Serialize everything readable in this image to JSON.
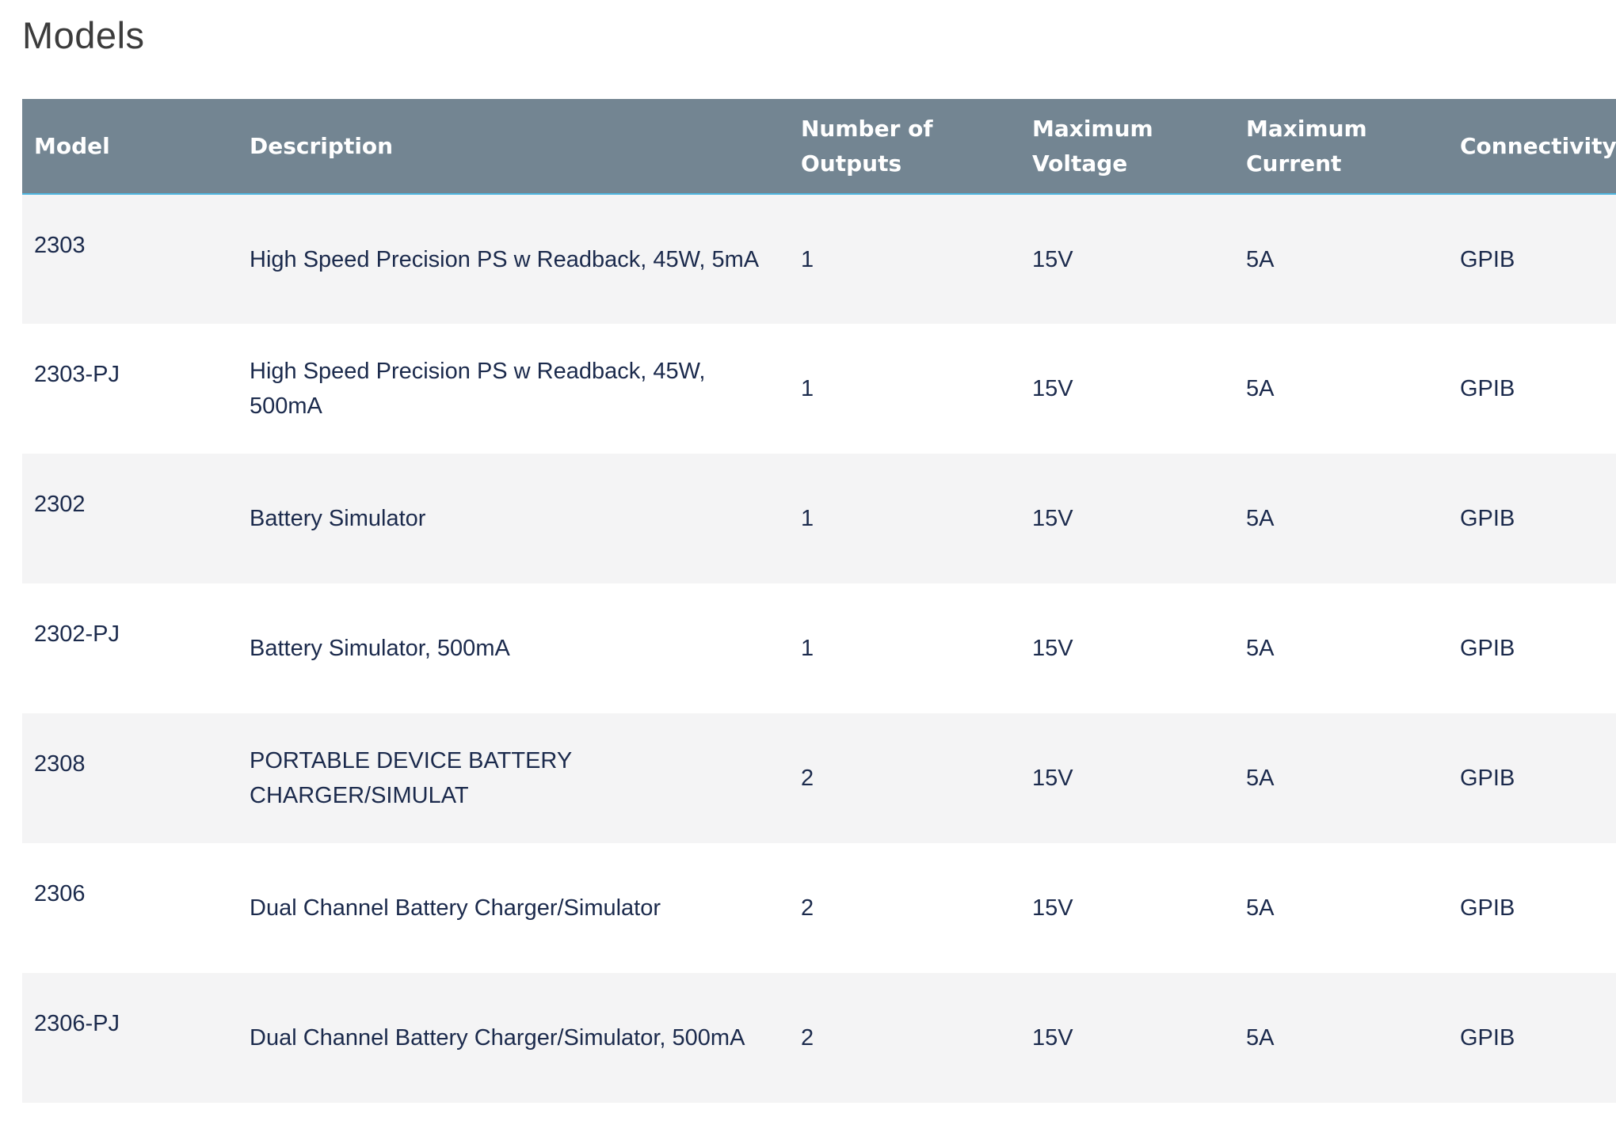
{
  "page": {
    "title": "Models"
  },
  "table": {
    "headers": {
      "model": "Model",
      "description": "Description",
      "outputs": "Number of Outputs",
      "voltage": "Maximum Voltage",
      "current": "Maximum Current",
      "connectivity": "Connectivity"
    },
    "rows": [
      {
        "model": "2303",
        "description": "High Speed Precision PS w Readback, 45W, 5mA",
        "outputs": "1",
        "voltage": "15V",
        "current": "5A",
        "connectivity": "GPIB"
      },
      {
        "model": "2303-PJ",
        "description": "High Speed Precision PS w Readback, 45W, 500mA",
        "outputs": "1",
        "voltage": "15V",
        "current": "5A",
        "connectivity": "GPIB"
      },
      {
        "model": "2302",
        "description": "Battery Simulator",
        "outputs": "1",
        "voltage": "15V",
        "current": "5A",
        "connectivity": "GPIB"
      },
      {
        "model": "2302-PJ",
        "description": "Battery Simulator, 500mA",
        "outputs": "1",
        "voltage": "15V",
        "current": "5A",
        "connectivity": "GPIB"
      },
      {
        "model": "2308",
        "description": "PORTABLE DEVICE BATTERY CHARGER/SIMULAT",
        "outputs": "2",
        "voltage": "15V",
        "current": "5A",
        "connectivity": "GPIB"
      },
      {
        "model": "2306",
        "description": "Dual Channel Battery Charger/Simulator",
        "outputs": "2",
        "voltage": "15V",
        "current": "5A",
        "connectivity": "GPIB"
      },
      {
        "model": "2306-PJ",
        "description": "Dual Channel Battery Charger/Simulator, 500mA",
        "outputs": "2",
        "voltage": "15V",
        "current": "5A",
        "connectivity": "GPIB"
      }
    ]
  },
  "colors": {
    "header_bg": "#738592",
    "header_underline": "#4fb6e0",
    "row_alt_bg": "#f4f4f5",
    "text": "#1b2a4c"
  }
}
